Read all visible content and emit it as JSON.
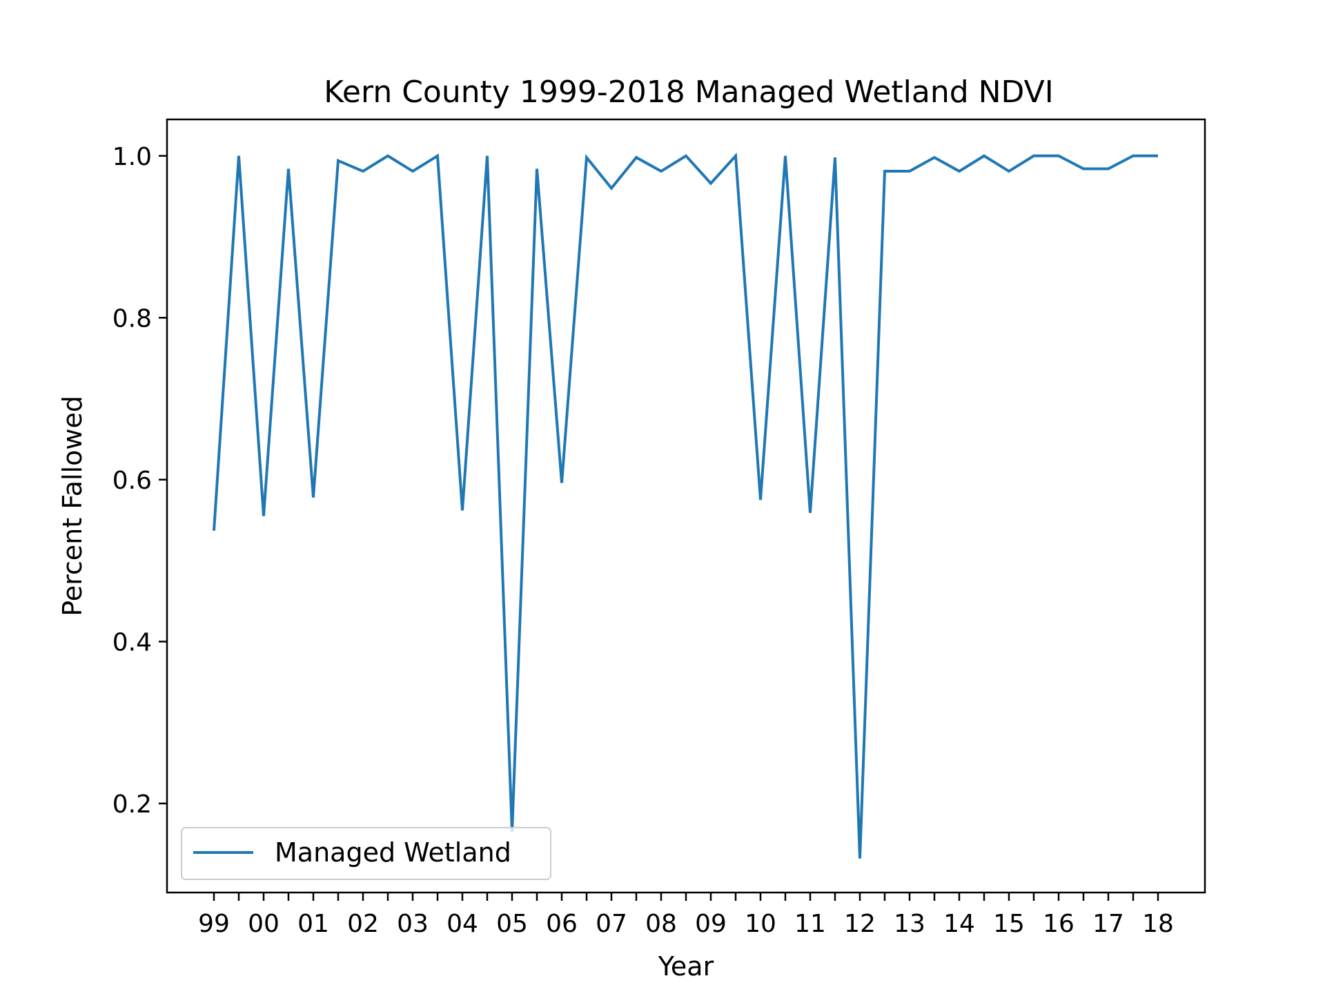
{
  "chart_data": {
    "type": "line",
    "title": "Kern County 1999-2018 Managed Wetland NDVI",
    "xlabel": "Year",
    "ylabel": "Percent Fallowed",
    "x_tick_labels": [
      "99",
      "00",
      "01",
      "02",
      "03",
      "04",
      "05",
      "06",
      "07",
      "08",
      "09",
      "10",
      "11",
      "12",
      "13",
      "14",
      "15",
      "16",
      "17",
      "18"
    ],
    "y_ticks": [
      "0.2",
      "0.4",
      "0.6",
      "0.8",
      "1.0"
    ],
    "y_tick_values": [
      0.2,
      0.4,
      0.6,
      0.8,
      1.0
    ],
    "ylim": [
      0.09,
      1.045
    ],
    "grid": false,
    "legend_position": "lower-left",
    "series": [
      {
        "name": "Managed Wetland",
        "color": "#1f77b4",
        "values": [
          0.537,
          1.0,
          0.555,
          0.984,
          0.578,
          0.994,
          0.981,
          1.0,
          0.981,
          1.0,
          0.562,
          1.0,
          0.165,
          0.984,
          0.596,
          0.998,
          0.96,
          0.998,
          0.981,
          1.0,
          0.966,
          1.0,
          0.575,
          1.0,
          0.559,
          0.998,
          0.132,
          0.981,
          0.981,
          0.998,
          0.981,
          1.0,
          0.981,
          1.0,
          1.0,
          0.984,
          0.984,
          1.0,
          1.0
        ]
      }
    ]
  }
}
